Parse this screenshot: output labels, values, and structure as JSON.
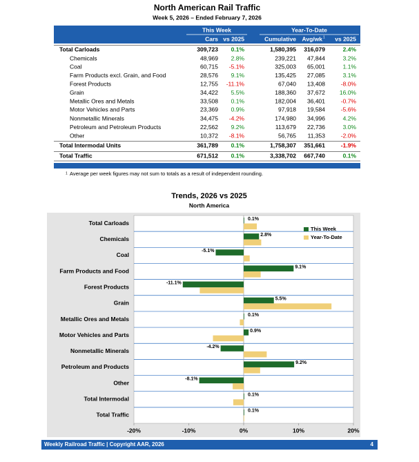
{
  "header": {
    "title": "North American Rail Traffic",
    "subtitle": "Week 5, 2026 – Ended February 7, 2026"
  },
  "table": {
    "groups": [
      "This Week",
      "Year-To-Date"
    ],
    "columns": [
      "Cars",
      "vs 2025",
      "Cumulative",
      "Avg/wk",
      "vs 2025"
    ],
    "footnote_mark": "1",
    "rows": [
      {
        "label": "Total Carloads",
        "cells": [
          "309,723",
          "0.1%",
          "1,580,395",
          "316,079",
          "2.4%"
        ]
      },
      {
        "label": "Chemicals",
        "cells": [
          "48,969",
          "2.8%",
          "239,221",
          "47,844",
          "3.2%"
        ]
      },
      {
        "label": "Coal",
        "cells": [
          "60,715",
          "-5.1%",
          "325,003",
          "65,001",
          "1.1%"
        ]
      },
      {
        "label": "Farm Products excl. Grain, and Food",
        "cells": [
          "28,576",
          "9.1%",
          "135,425",
          "27,085",
          "3.1%"
        ]
      },
      {
        "label": "Forest Products",
        "cells": [
          "12,755",
          "-11.1%",
          "67,040",
          "13,408",
          "-8.0%"
        ]
      },
      {
        "label": "Grain",
        "cells": [
          "34,422",
          "5.5%",
          "188,360",
          "37,672",
          "16.0%"
        ]
      },
      {
        "label": "Metallic Ores and Metals",
        "cells": [
          "33,508",
          "0.1%",
          "182,004",
          "36,401",
          "-0.7%"
        ]
      },
      {
        "label": "Motor Vehicles and Parts",
        "cells": [
          "23,369",
          "0.9%",
          "97,918",
          "19,584",
          "-5.6%"
        ]
      },
      {
        "label": "Nonmetallic Minerals",
        "cells": [
          "34,475",
          "-4.2%",
          "174,980",
          "34,996",
          "4.2%"
        ]
      },
      {
        "label": "Petroleum and Petroleum Products",
        "cells": [
          "22,562",
          "9.2%",
          "113,679",
          "22,736",
          "3.0%"
        ]
      },
      {
        "label": "Other",
        "cells": [
          "10,372",
          "-8.1%",
          "56,765",
          "11,353",
          "-2.0%"
        ]
      },
      {
        "label": "Total Intermodal Units",
        "cells": [
          "361,789",
          "0.1%",
          "1,758,307",
          "351,661",
          "-1.9%"
        ]
      },
      {
        "label": "Total Traffic",
        "cells": [
          "671,512",
          "0.1%",
          "3,338,702",
          "667,740",
          "0.1%"
        ]
      }
    ]
  },
  "footnote": {
    "mark": "1",
    "text": "Average per week figures may not sum to totals as a result of independent rounding."
  },
  "chart_data": {
    "type": "bar",
    "orientation": "horizontal",
    "title": "Trends, 2026 vs 2025",
    "subtitle": "North America",
    "categories": [
      "Total Carloads",
      "Chemicals",
      "Coal",
      "Farm Products and Food",
      "Forest Products",
      "Grain",
      "Metallic Ores and Metals",
      "Motor Vehicles and Parts",
      "Nonmetallic Minerals",
      "Petroleum and Products",
      "Other",
      "Total Intermodal",
      "Total Traffic"
    ],
    "series": [
      {
        "name": "This Week",
        "color": "#1e6b2a",
        "values": [
          0.1,
          2.8,
          -5.1,
          9.1,
          -11.1,
          5.5,
          0.1,
          0.9,
          -4.2,
          9.2,
          -8.1,
          0.1,
          0.1
        ],
        "value_labels": [
          "0.1%",
          "2.8%",
          "-5.1%",
          "9.1%",
          "-11.1%",
          "5.5%",
          "0.1%",
          "0.9%",
          "-4.2%",
          "9.2%",
          "-8.1%",
          "0.1%",
          "0.1%"
        ]
      },
      {
        "name": "Year-To-Date",
        "color": "#f0cf78",
        "values": [
          2.4,
          3.2,
          1.1,
          3.1,
          -8.0,
          16.0,
          -0.7,
          -5.6,
          4.2,
          3.0,
          -2.0,
          -1.9,
          0.1
        ]
      }
    ],
    "xlim": [
      -20,
      20
    ],
    "xticks": [
      {
        "value": -20,
        "label": "-20%"
      },
      {
        "value": -10,
        "label": "-10%"
      },
      {
        "value": 0,
        "label": "0%"
      },
      {
        "value": 10,
        "label": "10%"
      },
      {
        "value": 20,
        "label": "20%"
      }
    ]
  },
  "footer": {
    "left": "Weekly Railroad Traffic | Copyright AAR, 2026",
    "right": "4"
  }
}
